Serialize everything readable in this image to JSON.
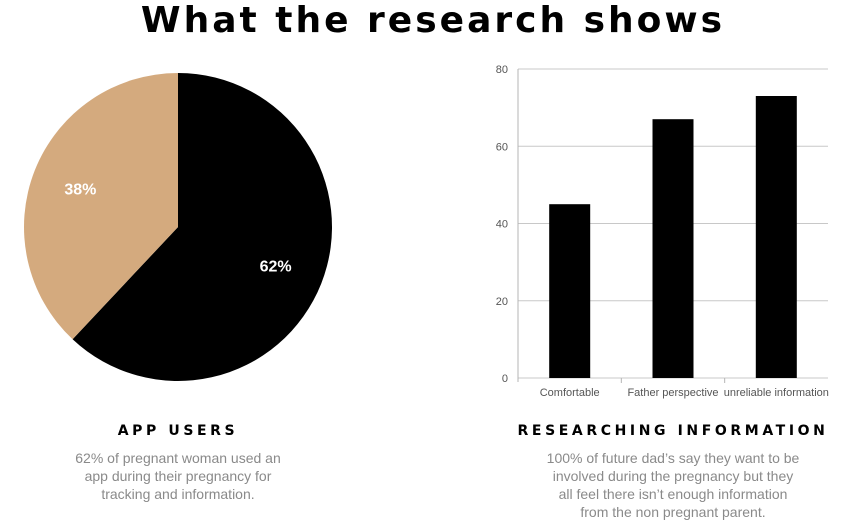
{
  "title": "What the research shows",
  "colors": {
    "pie_black": "#000000",
    "pie_tan": "#d4aa7e",
    "bar": "#000000",
    "grid": "#c8c8c8"
  },
  "chart_data": [
    {
      "type": "pie",
      "slices": [
        {
          "label": "62%",
          "value": 62,
          "color": "#000000"
        },
        {
          "label": "38%",
          "value": 38,
          "color": "#d4aa7e"
        }
      ]
    },
    {
      "type": "bar",
      "categories": [
        "Comfortable",
        "Father perspective",
        "unreliable information"
      ],
      "values": [
        45,
        67,
        73
      ],
      "ylim": [
        0,
        80
      ],
      "yticks": [
        0,
        20,
        40,
        60,
        80
      ],
      "grid": true
    }
  ],
  "left": {
    "heading": "APP USERS",
    "lines": [
      "62% of pregnant woman used an",
      "app during their pregnancy for",
      "tracking and information."
    ]
  },
  "right": {
    "heading": "RESEARCHING INFORMATION",
    "lines": [
      "100% of future dad’s say they want to be",
      "involved during the pregnancy but they",
      "all feel there isn’t enough information",
      "from the non pregnant parent."
    ]
  }
}
